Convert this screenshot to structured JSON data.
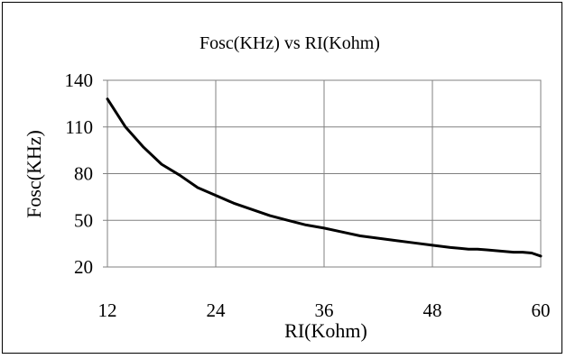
{
  "chart_data": {
    "type": "line",
    "title": "Fosc(KHz) vs RI(Kohm)",
    "xlabel": "RI(Kohm)",
    "ylabel": "Fosc(KHz)",
    "xlim": [
      12,
      60
    ],
    "ylim": [
      20,
      140
    ],
    "xticks": [
      12,
      24,
      36,
      48,
      60
    ],
    "yticks": [
      20,
      50,
      80,
      110,
      140
    ],
    "grid": true,
    "legend": "none",
    "line_color": "#000000",
    "series": [
      {
        "x": [
          12,
          14,
          16,
          18,
          20,
          22,
          24,
          26,
          28,
          30,
          32,
          34,
          36,
          38,
          40,
          42,
          44,
          46,
          48,
          50,
          51,
          52,
          53,
          54,
          55,
          56,
          57,
          58,
          59,
          60
        ],
        "values": [
          128,
          110,
          97,
          86,
          79,
          71,
          66,
          61,
          57,
          53,
          50,
          47,
          45,
          42.5,
          40,
          38.5,
          37,
          35.5,
          34,
          32.5,
          32,
          31.5,
          31.5,
          31,
          30.5,
          30,
          29.5,
          29.5,
          29,
          27
        ]
      }
    ]
  }
}
